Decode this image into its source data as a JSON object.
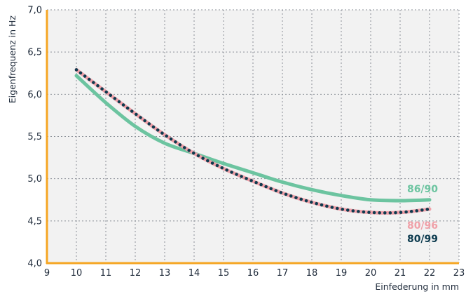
{
  "chart_data": {
    "type": "line",
    "xlabel": "Einfederung in mm",
    "ylabel": "Eigenfrequenz in Hz",
    "xlim": [
      9,
      23
    ],
    "ylim": [
      4.0,
      7.0
    ],
    "x_ticks": [
      "9",
      "10",
      "11",
      "12",
      "13",
      "14",
      "15",
      "16",
      "17",
      "18",
      "19",
      "20",
      "21",
      "22",
      "23"
    ],
    "y_ticks": [
      "4,0",
      "4,5",
      "5,0",
      "5,5",
      "6,0",
      "6,5",
      "7,0"
    ],
    "grid": true,
    "colors": {
      "background": "#f2f2f2",
      "axis": "#f5a623",
      "grid": "#8a8f97"
    },
    "series": [
      {
        "name": "86/90",
        "color": "#6cc4a0",
        "style": "solid",
        "x": [
          10,
          11,
          12,
          13,
          14,
          15,
          16,
          17,
          18,
          19,
          20,
          21,
          22
        ],
        "y": [
          6.22,
          5.9,
          5.62,
          5.42,
          5.3,
          5.18,
          5.07,
          4.96,
          4.87,
          4.8,
          4.75,
          4.74,
          4.75
        ]
      },
      {
        "name": "80/96",
        "color": "#f0a0a8",
        "style": "solid",
        "x": [
          10,
          11,
          12,
          13,
          14,
          15,
          16,
          17,
          18,
          19,
          20,
          21,
          22
        ],
        "y": [
          6.29,
          6.03,
          5.77,
          5.52,
          5.3,
          5.12,
          4.97,
          4.83,
          4.72,
          4.64,
          4.6,
          4.6,
          4.64
        ]
      },
      {
        "name": "80/99",
        "color": "#0d3b4f",
        "style": "dotted",
        "x": [
          10,
          11,
          12,
          13,
          14,
          15,
          16,
          17,
          18,
          19,
          20,
          21,
          22
        ],
        "y": [
          6.29,
          6.03,
          5.77,
          5.52,
          5.3,
          5.12,
          4.97,
          4.83,
          4.72,
          4.64,
          4.6,
          4.6,
          4.64
        ]
      }
    ]
  }
}
